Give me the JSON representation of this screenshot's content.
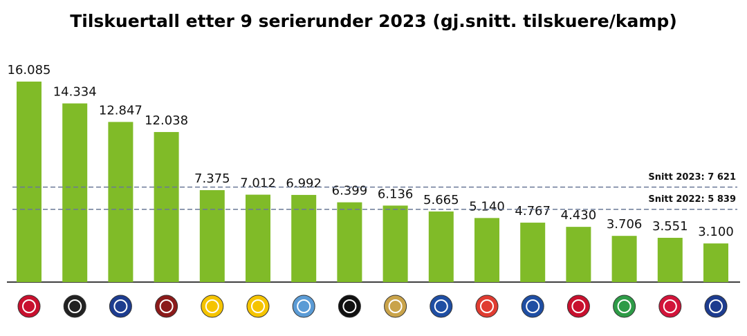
{
  "chart_data": {
    "type": "bar",
    "title": "Tilskuertall etter 9 serierunder 2023 (gj.snitt. tilskuere/kamp)",
    "categories": [
      null,
      null,
      null,
      null,
      null,
      null,
      null,
      null,
      null,
      null,
      null,
      null,
      null,
      null,
      null,
      null
    ],
    "values": [
      16085,
      14334,
      12847,
      12038,
      7375,
      7012,
      6992,
      6399,
      6136,
      5665,
      5140,
      4767,
      4430,
      3706,
      3551,
      3100
    ],
    "value_labels": [
      "16.085",
      "14.334",
      "12.847",
      "12.038",
      "7.375",
      "7.012",
      "6.992",
      "6.399",
      "6.136",
      "5.665",
      "5.140",
      "4.767",
      "4.430",
      "3.706",
      "3.551",
      "3.100"
    ],
    "color": "#80bb28",
    "reference_lines": [
      {
        "label": "Snitt 2023: 7 621",
        "value": 7621
      },
      {
        "label": "Snitt 2022: 5 839",
        "value": 5839
      }
    ]
  }
}
